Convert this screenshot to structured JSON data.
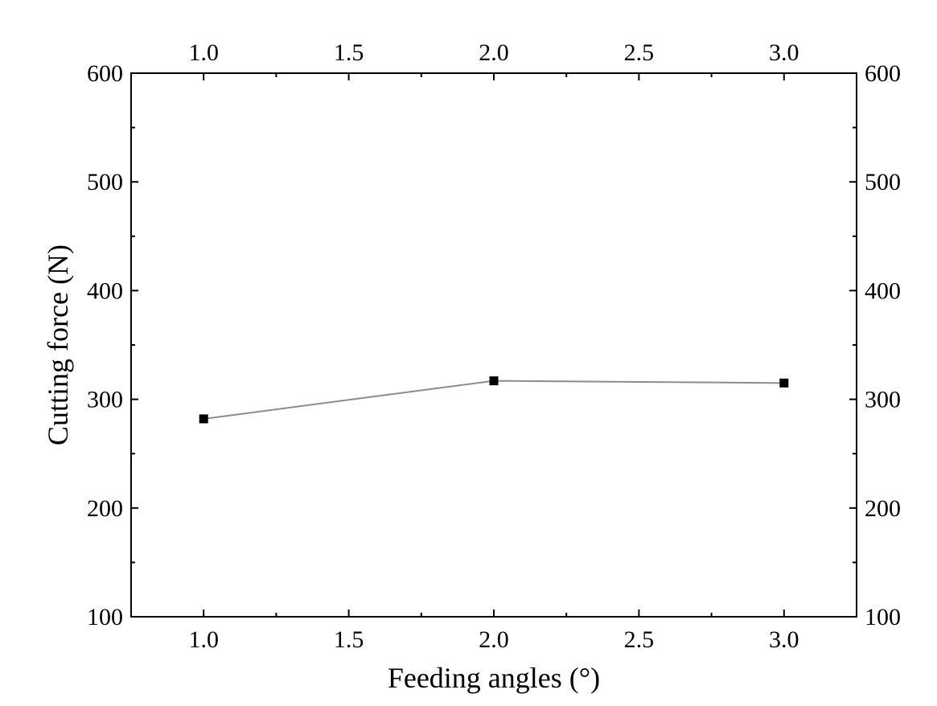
{
  "chart_data": {
    "type": "line",
    "title": "",
    "xlabel": "Feeding angles (°)",
    "ylabel": "Cutting force (N)",
    "xlim": [
      0.75,
      3.25
    ],
    "ylim": [
      100,
      600
    ],
    "x_major_ticks": [
      1.0,
      1.5,
      2.0,
      2.5,
      3.0
    ],
    "x_tick_labels": [
      "1.0",
      "1.5",
      "2.0",
      "2.5",
      "3.0"
    ],
    "x_minor_ticks": [
      1.25,
      1.75,
      2.25,
      2.75
    ],
    "y_major_ticks": [
      100,
      200,
      300,
      400,
      500,
      600
    ],
    "y_tick_labels": [
      "100",
      "200",
      "300",
      "400",
      "500",
      "600"
    ],
    "y_minor_ticks": [
      150,
      250,
      350,
      450,
      550
    ],
    "mirror_axes": true,
    "grid": false,
    "series": [
      {
        "name": "Cutting force",
        "x": [
          1.0,
          2.0,
          3.0
        ],
        "values": [
          282,
          317,
          315
        ],
        "line_color": "#8c8c8c",
        "marker": "square",
        "marker_color": "#000000"
      }
    ]
  }
}
